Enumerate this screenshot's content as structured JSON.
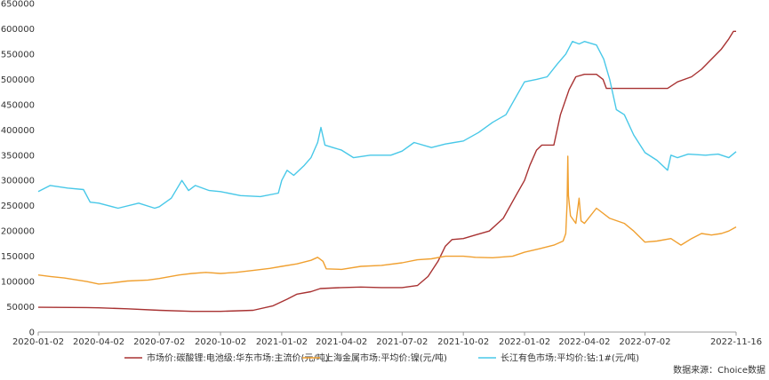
{
  "chart_data": {
    "type": "line",
    "title": "",
    "xlabel": "",
    "ylabel": "",
    "ylim": [
      0,
      650000
    ],
    "yticks": [
      0,
      50000,
      100000,
      150000,
      200000,
      250000,
      300000,
      350000,
      400000,
      450000,
      500000,
      550000,
      600000,
      650000
    ],
    "xlim": [
      "2020-01-02",
      "2022-11-16"
    ],
    "xticks": [
      "2020-01-02",
      "2020-04-02",
      "2020-07-02",
      "2020-10-02",
      "2021-01-02",
      "2021-04-02",
      "2021-07-02",
      "2021-10-02",
      "2022-01-02",
      "2022-04-02",
      "2022-07-02",
      "2022-11-16"
    ],
    "grid": false,
    "legend_position": "bottom",
    "source_text": "数据来源：Choice数据",
    "series": [
      {
        "name": "市场价:碳酸锂:电池级:华东市场:主流价(元/吨)",
        "color": "#a83232",
        "points": [
          [
            "2020-01-02",
            49000
          ],
          [
            "2020-03-15",
            48500
          ],
          [
            "2020-04-02",
            48000
          ],
          [
            "2020-05-15",
            46000
          ],
          [
            "2020-07-02",
            43000
          ],
          [
            "2020-08-20",
            41000
          ],
          [
            "2020-10-02",
            41000
          ],
          [
            "2020-11-20",
            43000
          ],
          [
            "2020-12-20",
            52000
          ],
          [
            "2021-01-10",
            65000
          ],
          [
            "2021-01-25",
            75000
          ],
          [
            "2021-02-15",
            80000
          ],
          [
            "2021-03-01",
            86000
          ],
          [
            "2021-04-02",
            88000
          ],
          [
            "2021-05-01",
            89000
          ],
          [
            "2021-06-01",
            88000
          ],
          [
            "2021-07-02",
            88000
          ],
          [
            "2021-07-25",
            92000
          ],
          [
            "2021-08-10",
            110000
          ],
          [
            "2021-08-25",
            140000
          ],
          [
            "2021-09-05",
            170000
          ],
          [
            "2021-09-15",
            183000
          ],
          [
            "2021-10-02",
            185000
          ],
          [
            "2021-10-20",
            192000
          ],
          [
            "2021-11-10",
            200000
          ],
          [
            "2021-12-01",
            225000
          ],
          [
            "2021-12-20",
            270000
          ],
          [
            "2022-01-02",
            300000
          ],
          [
            "2022-01-10",
            330000
          ],
          [
            "2022-01-20",
            360000
          ],
          [
            "2022-01-28",
            370000
          ],
          [
            "2022-02-15",
            370000
          ],
          [
            "2022-02-25",
            430000
          ],
          [
            "2022-03-10",
            480000
          ],
          [
            "2022-03-20",
            505000
          ],
          [
            "2022-04-02",
            510000
          ],
          [
            "2022-04-20",
            510000
          ],
          [
            "2022-04-30",
            500000
          ],
          [
            "2022-05-05",
            482000
          ],
          [
            "2022-06-01",
            482000
          ],
          [
            "2022-07-02",
            482000
          ],
          [
            "2022-08-05",
            482000
          ],
          [
            "2022-08-20",
            495000
          ],
          [
            "2022-09-10",
            505000
          ],
          [
            "2022-09-25",
            520000
          ],
          [
            "2022-10-10",
            540000
          ],
          [
            "2022-10-25",
            560000
          ],
          [
            "2022-11-05",
            580000
          ],
          [
            "2022-11-12",
            595000
          ],
          [
            "2022-11-16",
            595000
          ]
        ]
      },
      {
        "name": "上海金属市场:平均价:镍(元/吨)",
        "color": "#f0a030",
        "points": [
          [
            "2020-01-02",
            113000
          ],
          [
            "2020-01-20",
            110000
          ],
          [
            "2020-02-10",
            107000
          ],
          [
            "2020-03-01",
            103000
          ],
          [
            "2020-03-15",
            100000
          ],
          [
            "2020-04-02",
            95000
          ],
          [
            "2020-04-20",
            97000
          ],
          [
            "2020-05-15",
            101000
          ],
          [
            "2020-06-15",
            103000
          ],
          [
            "2020-07-02",
            106000
          ],
          [
            "2020-08-01",
            113000
          ],
          [
            "2020-08-20",
            116000
          ],
          [
            "2020-09-10",
            118000
          ],
          [
            "2020-10-02",
            116000
          ],
          [
            "2020-10-25",
            118000
          ],
          [
            "2020-11-20",
            122000
          ],
          [
            "2020-12-15",
            126000
          ],
          [
            "2021-01-02",
            130000
          ],
          [
            "2021-01-25",
            135000
          ],
          [
            "2021-02-15",
            142000
          ],
          [
            "2021-02-25",
            148000
          ],
          [
            "2021-03-05",
            140000
          ],
          [
            "2021-03-10",
            125000
          ],
          [
            "2021-04-02",
            124000
          ],
          [
            "2021-05-01",
            130000
          ],
          [
            "2021-06-01",
            132000
          ],
          [
            "2021-07-02",
            137000
          ],
          [
            "2021-07-25",
            143000
          ],
          [
            "2021-08-15",
            145000
          ],
          [
            "2021-09-05",
            150000
          ],
          [
            "2021-10-02",
            150000
          ],
          [
            "2021-10-20",
            148000
          ],
          [
            "2021-11-15",
            147000
          ],
          [
            "2021-12-15",
            150000
          ],
          [
            "2022-01-02",
            158000
          ],
          [
            "2022-01-25",
            165000
          ],
          [
            "2022-02-15",
            172000
          ],
          [
            "2022-03-01",
            180000
          ],
          [
            "2022-03-05",
            195000
          ],
          [
            "2022-03-07",
            255000
          ],
          [
            "2022-03-08",
            348000
          ],
          [
            "2022-03-09",
            270000
          ],
          [
            "2022-03-12",
            230000
          ],
          [
            "2022-03-20",
            215000
          ],
          [
            "2022-03-25",
            265000
          ],
          [
            "2022-03-28",
            220000
          ],
          [
            "2022-04-02",
            215000
          ],
          [
            "2022-04-20",
            245000
          ],
          [
            "2022-05-10",
            225000
          ],
          [
            "2022-06-01",
            215000
          ],
          [
            "2022-06-15",
            200000
          ],
          [
            "2022-07-02",
            178000
          ],
          [
            "2022-07-20",
            180000
          ],
          [
            "2022-08-10",
            185000
          ],
          [
            "2022-08-25",
            172000
          ],
          [
            "2022-09-10",
            185000
          ],
          [
            "2022-09-25",
            195000
          ],
          [
            "2022-10-10",
            192000
          ],
          [
            "2022-10-25",
            195000
          ],
          [
            "2022-11-05",
            200000
          ],
          [
            "2022-11-16",
            208000
          ]
        ]
      },
      {
        "name": "长江有色市场:平均价:钴:1#(元/吨)",
        "color": "#48c8e8",
        "points": [
          [
            "2020-01-02",
            278000
          ],
          [
            "2020-01-20",
            290000
          ],
          [
            "2020-02-15",
            285000
          ],
          [
            "2020-03-10",
            282000
          ],
          [
            "2020-03-20",
            257000
          ],
          [
            "2020-04-02",
            255000
          ],
          [
            "2020-05-01",
            245000
          ],
          [
            "2020-06-01",
            255000
          ],
          [
            "2020-06-25",
            245000
          ],
          [
            "2020-07-02",
            248000
          ],
          [
            "2020-07-20",
            265000
          ],
          [
            "2020-08-05",
            300000
          ],
          [
            "2020-08-15",
            280000
          ],
          [
            "2020-08-25",
            290000
          ],
          [
            "2020-09-15",
            280000
          ],
          [
            "2020-10-02",
            278000
          ],
          [
            "2020-11-01",
            270000
          ],
          [
            "2020-12-01",
            268000
          ],
          [
            "2020-12-28",
            275000
          ],
          [
            "2021-01-02",
            300000
          ],
          [
            "2021-01-10",
            320000
          ],
          [
            "2021-01-20",
            310000
          ],
          [
            "2021-02-05",
            330000
          ],
          [
            "2021-02-15",
            345000
          ],
          [
            "2021-02-25",
            375000
          ],
          [
            "2021-03-02",
            405000
          ],
          [
            "2021-03-08",
            370000
          ],
          [
            "2021-03-20",
            365000
          ],
          [
            "2021-04-02",
            360000
          ],
          [
            "2021-04-20",
            345000
          ],
          [
            "2021-05-15",
            350000
          ],
          [
            "2021-06-15",
            350000
          ],
          [
            "2021-07-02",
            358000
          ],
          [
            "2021-07-20",
            375000
          ],
          [
            "2021-08-15",
            365000
          ],
          [
            "2021-09-05",
            372000
          ],
          [
            "2021-10-02",
            378000
          ],
          [
            "2021-10-25",
            395000
          ],
          [
            "2021-11-15",
            415000
          ],
          [
            "2021-12-05",
            430000
          ],
          [
            "2021-12-20",
            465000
          ],
          [
            "2022-01-02",
            495000
          ],
          [
            "2022-01-20",
            500000
          ],
          [
            "2022-02-05",
            505000
          ],
          [
            "2022-02-20",
            530000
          ],
          [
            "2022-03-05",
            550000
          ],
          [
            "2022-03-15",
            575000
          ],
          [
            "2022-03-25",
            570000
          ],
          [
            "2022-04-02",
            575000
          ],
          [
            "2022-04-20",
            568000
          ],
          [
            "2022-05-01",
            540000
          ],
          [
            "2022-05-10",
            500000
          ],
          [
            "2022-05-20",
            440000
          ],
          [
            "2022-06-01",
            430000
          ],
          [
            "2022-06-15",
            390000
          ],
          [
            "2022-07-02",
            355000
          ],
          [
            "2022-07-20",
            340000
          ],
          [
            "2022-08-05",
            320000
          ],
          [
            "2022-08-10",
            350000
          ],
          [
            "2022-08-20",
            345000
          ],
          [
            "2022-09-05",
            352000
          ],
          [
            "2022-10-01",
            350000
          ],
          [
            "2022-10-20",
            352000
          ],
          [
            "2022-11-05",
            345000
          ],
          [
            "2022-11-16",
            357000
          ]
        ]
      }
    ]
  }
}
